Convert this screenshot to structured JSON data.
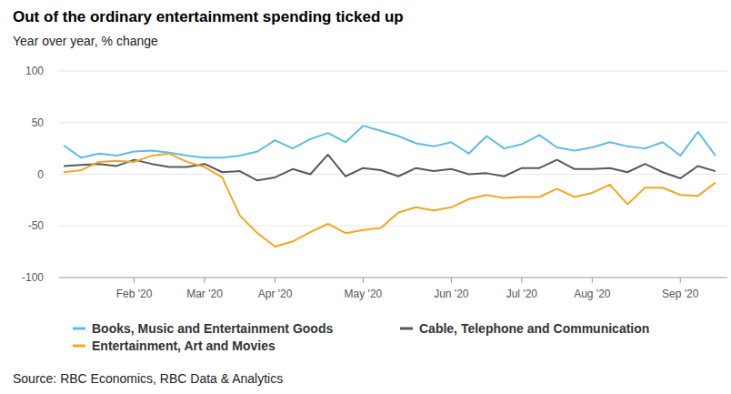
{
  "chart_data": {
    "type": "line",
    "title": "Out of the ordinary entertainment spending ticked up",
    "subtitle": "Year over year, % change",
    "source": "Source: RBC Economics, RBC Data & Analytics",
    "categories": [
      null,
      null,
      null,
      null,
      "Feb '20",
      null,
      null,
      null,
      "Mar '20",
      null,
      null,
      null,
      "Apr '20",
      null,
      null,
      null,
      null,
      "May '20",
      null,
      null,
      null,
      null,
      "Jun '20",
      null,
      null,
      null,
      "Jul '20",
      null,
      null,
      null,
      "Aug '20",
      null,
      null,
      null,
      null,
      "Sep '20",
      null,
      null
    ],
    "series": [
      {
        "name": "Books, Music and Entertainment Goods",
        "color": "#5bbde4",
        "values": [
          28,
          16,
          20,
          18,
          22,
          23,
          21,
          18,
          16,
          16,
          18,
          22,
          33,
          25,
          34,
          40,
          31,
          47,
          42,
          37,
          30,
          27,
          31,
          20,
          37,
          25,
          29,
          38,
          26,
          23,
          26,
          31,
          27,
          25,
          31,
          18,
          41,
          18
        ]
      },
      {
        "name": "Cable, Telephone and Communication",
        "color": "#58595b",
        "values": [
          8,
          9,
          10,
          8,
          14,
          10,
          7,
          7,
          10,
          2,
          3,
          -6,
          -3,
          5,
          0,
          19,
          -2,
          6,
          4,
          -2,
          6,
          3,
          5,
          0,
          1,
          -2,
          6,
          6,
          14,
          5,
          5,
          6,
          2,
          10,
          2,
          -4,
          8,
          3
        ]
      },
      {
        "name": "Entertainment, Art and Movies",
        "color": "#f5a623",
        "values": [
          2,
          4,
          12,
          13,
          12,
          18,
          20,
          12,
          7,
          -3,
          -40,
          -57,
          -70,
          -65,
          -56,
          -48,
          -57,
          -54,
          -52,
          -37,
          -32,
          -35,
          -32,
          -24,
          -20,
          -23,
          -22,
          -22,
          -14,
          -22,
          -18,
          -10,
          -29,
          -13,
          -13,
          -20,
          -21,
          -8
        ]
      }
    ],
    "ylim": [
      -100,
      100
    ],
    "yticks": [
      -100,
      -50,
      0,
      50,
      100
    ],
    "grid": true
  }
}
